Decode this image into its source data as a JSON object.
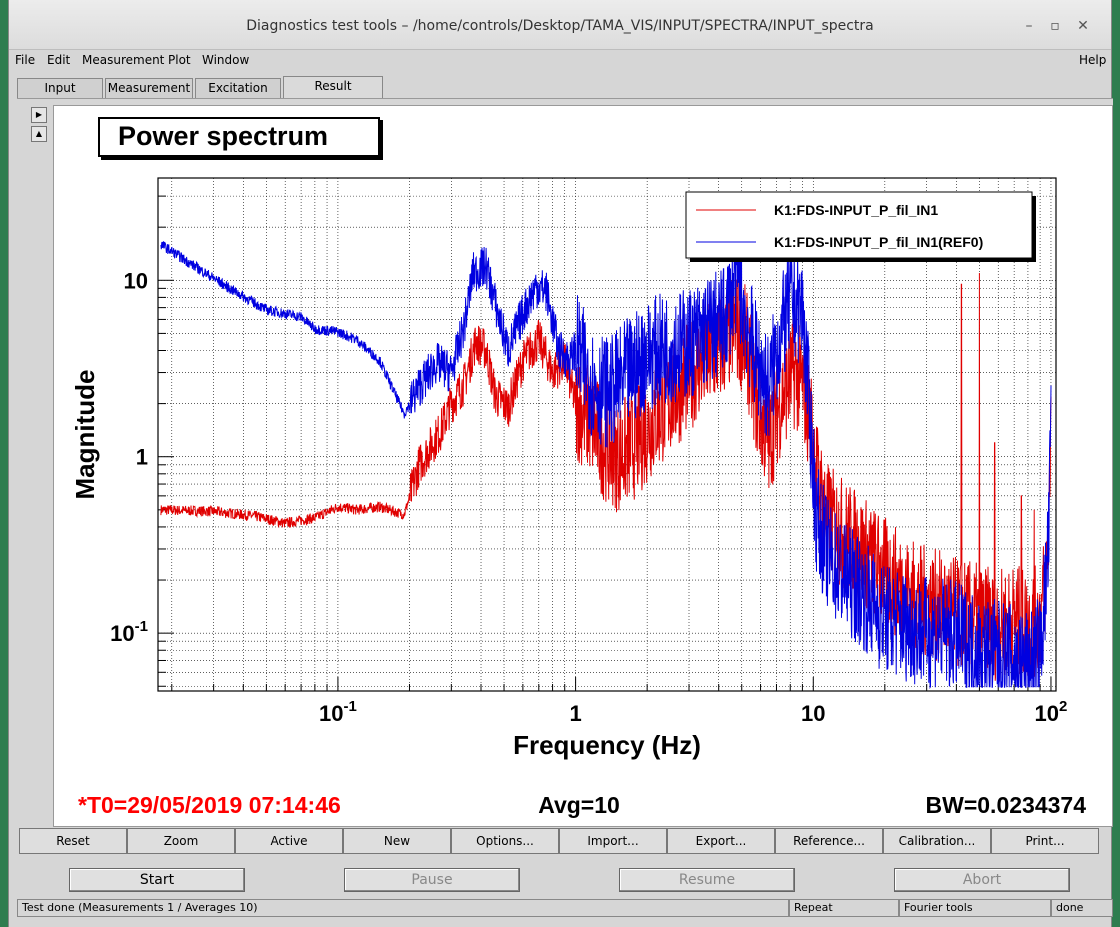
{
  "window": {
    "title": "Diagnostics test tools – /home/controls/Desktop/TAMA_VIS/INPUT/SPECTRA/INPUT_spectra"
  },
  "menu": {
    "file": "File",
    "edit": "Edit",
    "measurement": "Measurement",
    "plot": "Plot",
    "window": "Window",
    "help": "Help"
  },
  "tabs": [
    {
      "label": "Input"
    },
    {
      "label": "Measurement"
    },
    {
      "label": "Excitation"
    },
    {
      "label": "Result"
    }
  ],
  "plot": {
    "title": "Power spectrum",
    "t0": "*T0=29/05/2019 07:14:46",
    "avg": "Avg=10",
    "bw": "BW=0.0234374"
  },
  "chart_data": {
    "type": "line",
    "title": "Power spectrum",
    "xlabel": "Frequency (Hz)",
    "ylabel": "Magnitude",
    "xscale": "log",
    "yscale": "log",
    "xlim": [
      0.0175,
      105
    ],
    "ylim": [
      0.047,
      38
    ],
    "xticks": [
      "10^-1",
      "1",
      "10",
      "10^2"
    ],
    "yticks": [
      "10^-1",
      "1",
      "10"
    ],
    "grid": true,
    "legend": "top-right",
    "series": [
      {
        "name": "K1:FDS-INPUT_P_fil_IN1",
        "color": "#e00000",
        "points": [
          [
            0.018,
            0.5
          ],
          [
            0.03,
            0.49
          ],
          [
            0.045,
            0.46
          ],
          [
            0.06,
            0.42
          ],
          [
            0.08,
            0.45
          ],
          [
            0.1,
            0.52
          ],
          [
            0.12,
            0.5
          ],
          [
            0.15,
            0.52
          ],
          [
            0.19,
            0.47
          ],
          [
            0.22,
            0.9
          ],
          [
            0.27,
            1.4
          ],
          [
            0.3,
            2.0
          ],
          [
            0.34,
            2.6
          ],
          [
            0.38,
            4.5
          ],
          [
            0.42,
            4.0
          ],
          [
            0.46,
            2.2
          ],
          [
            0.52,
            1.9
          ],
          [
            0.6,
            3.5
          ],
          [
            0.7,
            4.6
          ],
          [
            0.8,
            3.0
          ],
          [
            0.9,
            3.5
          ],
          [
            1.0,
            2.0
          ],
          [
            1.15,
            1.6
          ],
          [
            1.3,
            1.2
          ],
          [
            1.5,
            1.0
          ],
          [
            1.8,
            1.2
          ],
          [
            2.2,
            1.7
          ],
          [
            2.7,
            2.4
          ],
          [
            3.2,
            3.2
          ],
          [
            4.0,
            4.0
          ],
          [
            4.7,
            5.5
          ],
          [
            5.2,
            4.5
          ],
          [
            5.8,
            2.0
          ],
          [
            6.5,
            1.2
          ],
          [
            7.2,
            2.0
          ],
          [
            8.2,
            3.0
          ],
          [
            9.0,
            2.6
          ],
          [
            9.8,
            1.5
          ],
          [
            10.5,
            0.7
          ],
          [
            11.5,
            0.45
          ],
          [
            13,
            0.38
          ],
          [
            16,
            0.3
          ],
          [
            20,
            0.22
          ],
          [
            25,
            0.17
          ],
          [
            30,
            0.15
          ],
          [
            35,
            0.14
          ],
          [
            40,
            0.13
          ],
          [
            50,
            0.12
          ],
          [
            60,
            0.11
          ],
          [
            70,
            0.12
          ],
          [
            80,
            0.11
          ],
          [
            90,
            0.12
          ],
          [
            95,
            0.2
          ],
          [
            98,
            0.4
          ],
          [
            100,
            2.2
          ]
        ],
        "spikes": [
          [
            42,
            9.5
          ],
          [
            50,
            11
          ],
          [
            58,
            1.2
          ],
          [
            75,
            0.6
          ],
          [
            85,
            0.5
          ]
        ]
      },
      {
        "name": "K1:FDS-INPUT_P_fil_IN1(REF0)",
        "color": "#0000e0",
        "points": [
          [
            0.018,
            16
          ],
          [
            0.025,
            12
          ],
          [
            0.035,
            9
          ],
          [
            0.05,
            6.8
          ],
          [
            0.07,
            6.2
          ],
          [
            0.08,
            5.3
          ],
          [
            0.1,
            5.1
          ],
          [
            0.12,
            4.6
          ],
          [
            0.15,
            3.5
          ],
          [
            0.19,
            1.75
          ],
          [
            0.22,
            2.5
          ],
          [
            0.26,
            3.4
          ],
          [
            0.3,
            3.0
          ],
          [
            0.34,
            5.5
          ],
          [
            0.37,
            11
          ],
          [
            0.42,
            12
          ],
          [
            0.47,
            6.5
          ],
          [
            0.52,
            4.0
          ],
          [
            0.6,
            6.5
          ],
          [
            0.68,
            9.2
          ],
          [
            0.75,
            8.8
          ],
          [
            0.85,
            4.0
          ],
          [
            0.95,
            3.5
          ],
          [
            1.0,
            4.2
          ],
          [
            1.2,
            2.5
          ],
          [
            1.4,
            2.3
          ],
          [
            1.6,
            2.8
          ],
          [
            2.0,
            3.8
          ],
          [
            2.5,
            4.2
          ],
          [
            3.0,
            4.4
          ],
          [
            3.6,
            5.2
          ],
          [
            4.2,
            5.8
          ],
          [
            4.8,
            11
          ],
          [
            5.2,
            6.0
          ],
          [
            5.8,
            3.5
          ],
          [
            6.5,
            2.4
          ],
          [
            7.0,
            4.0
          ],
          [
            8.0,
            7.5
          ],
          [
            9.0,
            6.8
          ],
          [
            9.6,
            2.0
          ],
          [
            10.3,
            0.45
          ],
          [
            11.5,
            0.28
          ],
          [
            13,
            0.22
          ],
          [
            16,
            0.17
          ],
          [
            20,
            0.12
          ],
          [
            25,
            0.11
          ],
          [
            30,
            0.1
          ],
          [
            35,
            0.1
          ],
          [
            40,
            0.095
          ],
          [
            50,
            0.08
          ],
          [
            60,
            0.075
          ],
          [
            70,
            0.07
          ],
          [
            80,
            0.065
          ],
          [
            90,
            0.08
          ],
          [
            95,
            0.18
          ],
          [
            98,
            0.35
          ],
          [
            100,
            1.8
          ]
        ],
        "spikes": [
          [
            30,
            0.12
          ]
        ]
      }
    ]
  },
  "actions": {
    "reset": "Reset",
    "zoom": "Zoom",
    "active": "Active",
    "new": "New",
    "options": "Options...",
    "import": "Import...",
    "export": "Export...",
    "reference": "Reference...",
    "calibration": "Calibration...",
    "print": "Print..."
  },
  "controls": {
    "start": "Start",
    "pause": "Pause",
    "resume": "Resume",
    "abort": "Abort"
  },
  "status": {
    "message": "Test done (Measurements 1 / Averages 10)",
    "repeat": "Repeat",
    "tools": "Fourier tools",
    "state": "done"
  }
}
